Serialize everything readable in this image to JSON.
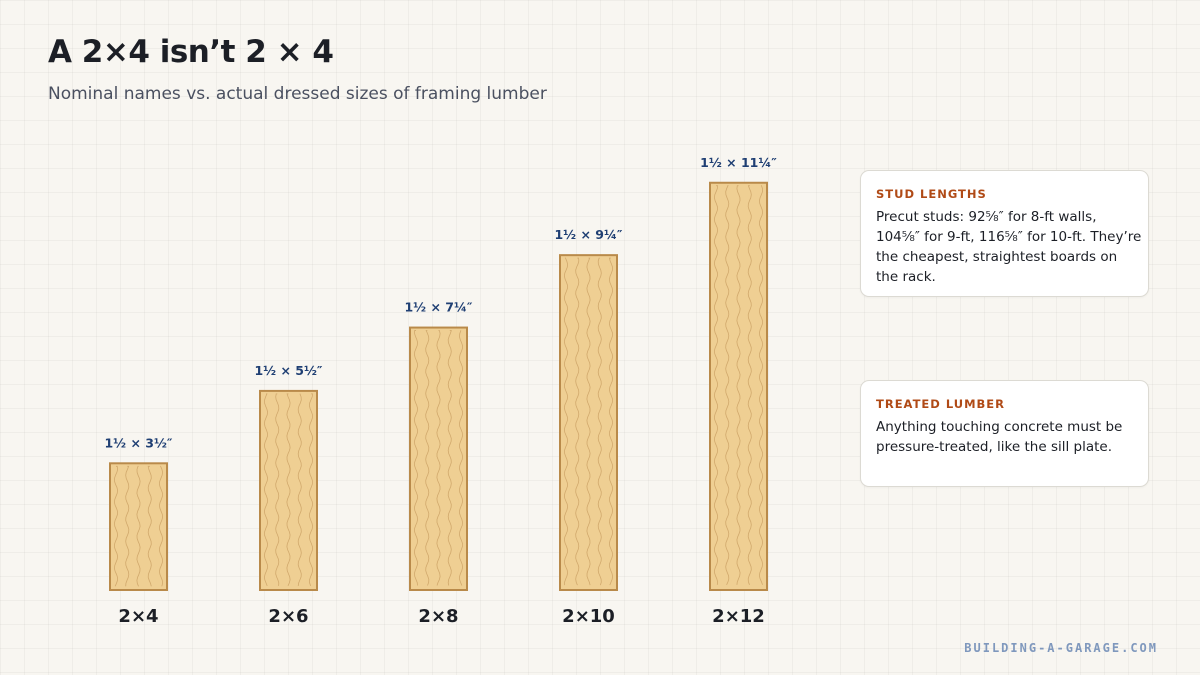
{
  "header": {
    "title": "A 2×4 isn’t 2 × 4",
    "subtitle": "Nominal names vs. actual dressed sizes of framing lumber"
  },
  "chart_data": {
    "type": "bar",
    "categories": [
      "2×4",
      "2×6",
      "2×8",
      "2×10",
      "2×12"
    ],
    "values": [
      3.5,
      5.5,
      7.25,
      9.25,
      11.25
    ],
    "thickness": [
      1.5,
      1.5,
      1.5,
      1.5,
      1.5
    ],
    "data_labels": [
      "1½ × 3½″",
      "1½ × 5½″",
      "1½ × 7¼″",
      "1½ × 9¼″",
      "1½ × 11¼″"
    ],
    "title": "A 2×4 isn’t 2 × 4",
    "subtitle": "Nominal names vs. actual dressed sizes of framing lumber",
    "xlabel": "",
    "ylabel": "",
    "grid": false,
    "colors": {
      "bar_fill": "#efcf93",
      "bar_stroke": "#b98a4a",
      "grain": "#c99f63",
      "data_label": "#1f3f73",
      "category_label": "#1c1f26"
    }
  },
  "notes": [
    {
      "title": "STUD LENGTHS",
      "body": "Precut studs: 92⅝″ for 8-ft walls, 104⅝″ for 9-ft, 116⅝″ for 10-ft. They’re the cheapest, straightest boards on the rack."
    },
    {
      "title": "TREATED LUMBER",
      "body": "Anything touching concrete must be pressure-treated, like the sill plate."
    }
  ],
  "footer": {
    "credit": "BUILDING-A-GARAGE.COM"
  }
}
